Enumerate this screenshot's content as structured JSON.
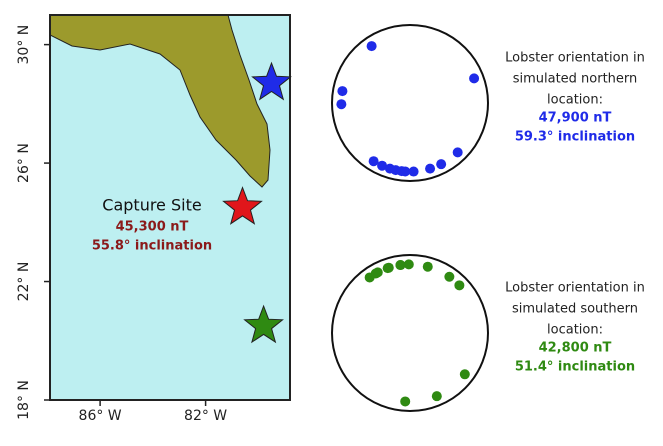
{
  "map": {
    "xlim": [
      -87.9,
      -78.8
    ],
    "ylim": [
      18,
      31
    ],
    "xticks": [
      {
        "value": -86,
        "label": "86° W"
      },
      {
        "value": -82,
        "label": "82° W"
      }
    ],
    "yticks": [
      {
        "value": 18,
        "label": "18° N"
      },
      {
        "value": 22,
        "label": "22° N"
      },
      {
        "value": 26,
        "label": "26° N"
      },
      {
        "value": 30,
        "label": "30° N"
      }
    ],
    "capture_site": {
      "label": "Capture Site",
      "field": "45,300 nT",
      "inclination": "55.8° inclination",
      "lon": -80.6,
      "lat": 24.5,
      "color": "#e0161b"
    }
  },
  "orientation_plots": [
    {
      "caption": [
        "Lobster orientation in",
        "simulated northern",
        "location:"
      ],
      "field": "47,900 nT",
      "inclination": "59.3° inclination",
      "color": "#1f2be8",
      "site": {
        "lon": -79.5,
        "lat": 28.7
      },
      "bearings": [
        326,
        280,
        269,
        69,
        212,
        204,
        197,
        192,
        187,
        184,
        177,
        163,
        153,
        136
      ]
    },
    {
      "caption": [
        "Lobster orientation in",
        "simulated southern",
        "location:"
      ],
      "field": "42,800 nT",
      "inclination": "51.4° inclination",
      "color": "#2f8a12",
      "site": {
        "lon": -79.8,
        "lat": 20.5
      },
      "bearings": [
        324,
        332,
        330,
        342,
        341,
        352,
        359,
        352,
        15,
        35,
        46,
        127,
        157,
        184
      ]
    }
  ]
}
